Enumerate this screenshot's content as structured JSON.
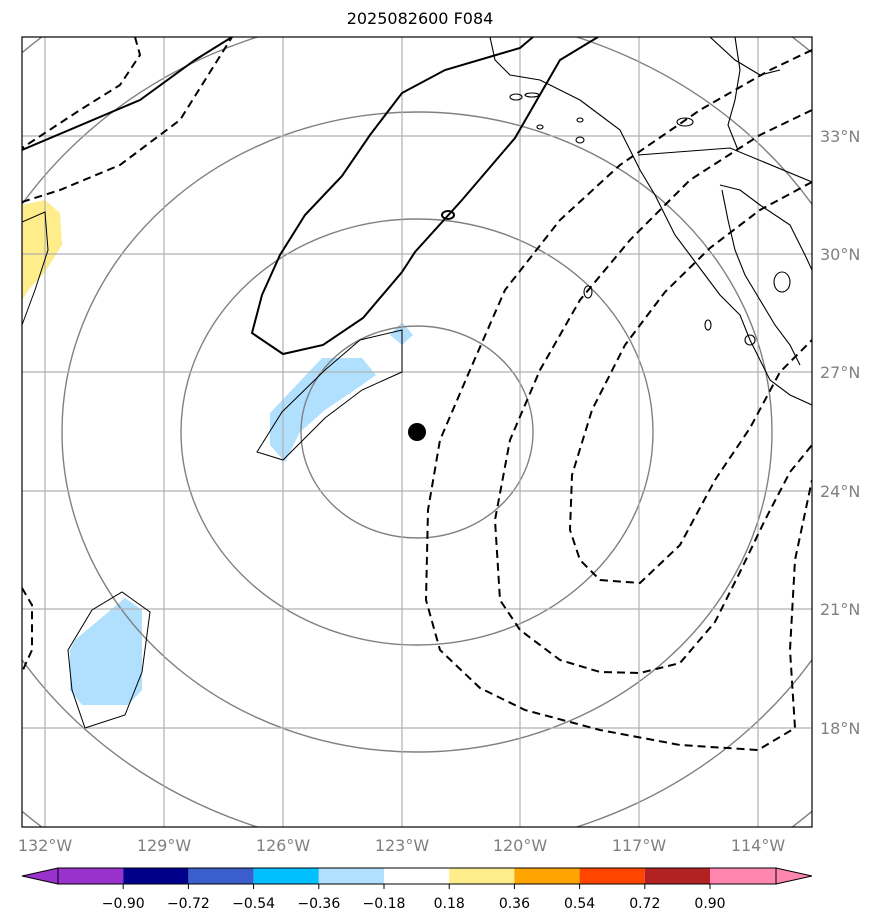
{
  "title": "2025082600 F084",
  "map": {
    "lat_ticks": [
      "33°N",
      "30°N",
      "27°N",
      "24°N",
      "21°N",
      "18°N"
    ],
    "lon_ticks": [
      "132°W",
      "129°W",
      "126°W",
      "123°W",
      "120°W",
      "117°W",
      "114°W"
    ],
    "center_marker": {
      "lon": -122.6,
      "lat": 25.4
    },
    "range_rings": 5,
    "colors": {
      "gridline": "#b0b0b0",
      "rings": "#808080",
      "contour": "#000000",
      "coast": "#000000"
    }
  },
  "colorbar": {
    "labels": [
      "−0.90",
      "−0.72",
      "−0.54",
      "−0.36",
      "−0.18",
      "0.18",
      "0.36",
      "0.54",
      "0.72",
      "0.90"
    ],
    "colors": [
      "#9932cc",
      "#00008b",
      "#3a5fcd",
      "#00bfff",
      "#b0e0fe",
      "#ffffff",
      "#ffec8b",
      "#ffa500",
      "#ff4500",
      "#b22222",
      "#ff86ae"
    ]
  }
}
